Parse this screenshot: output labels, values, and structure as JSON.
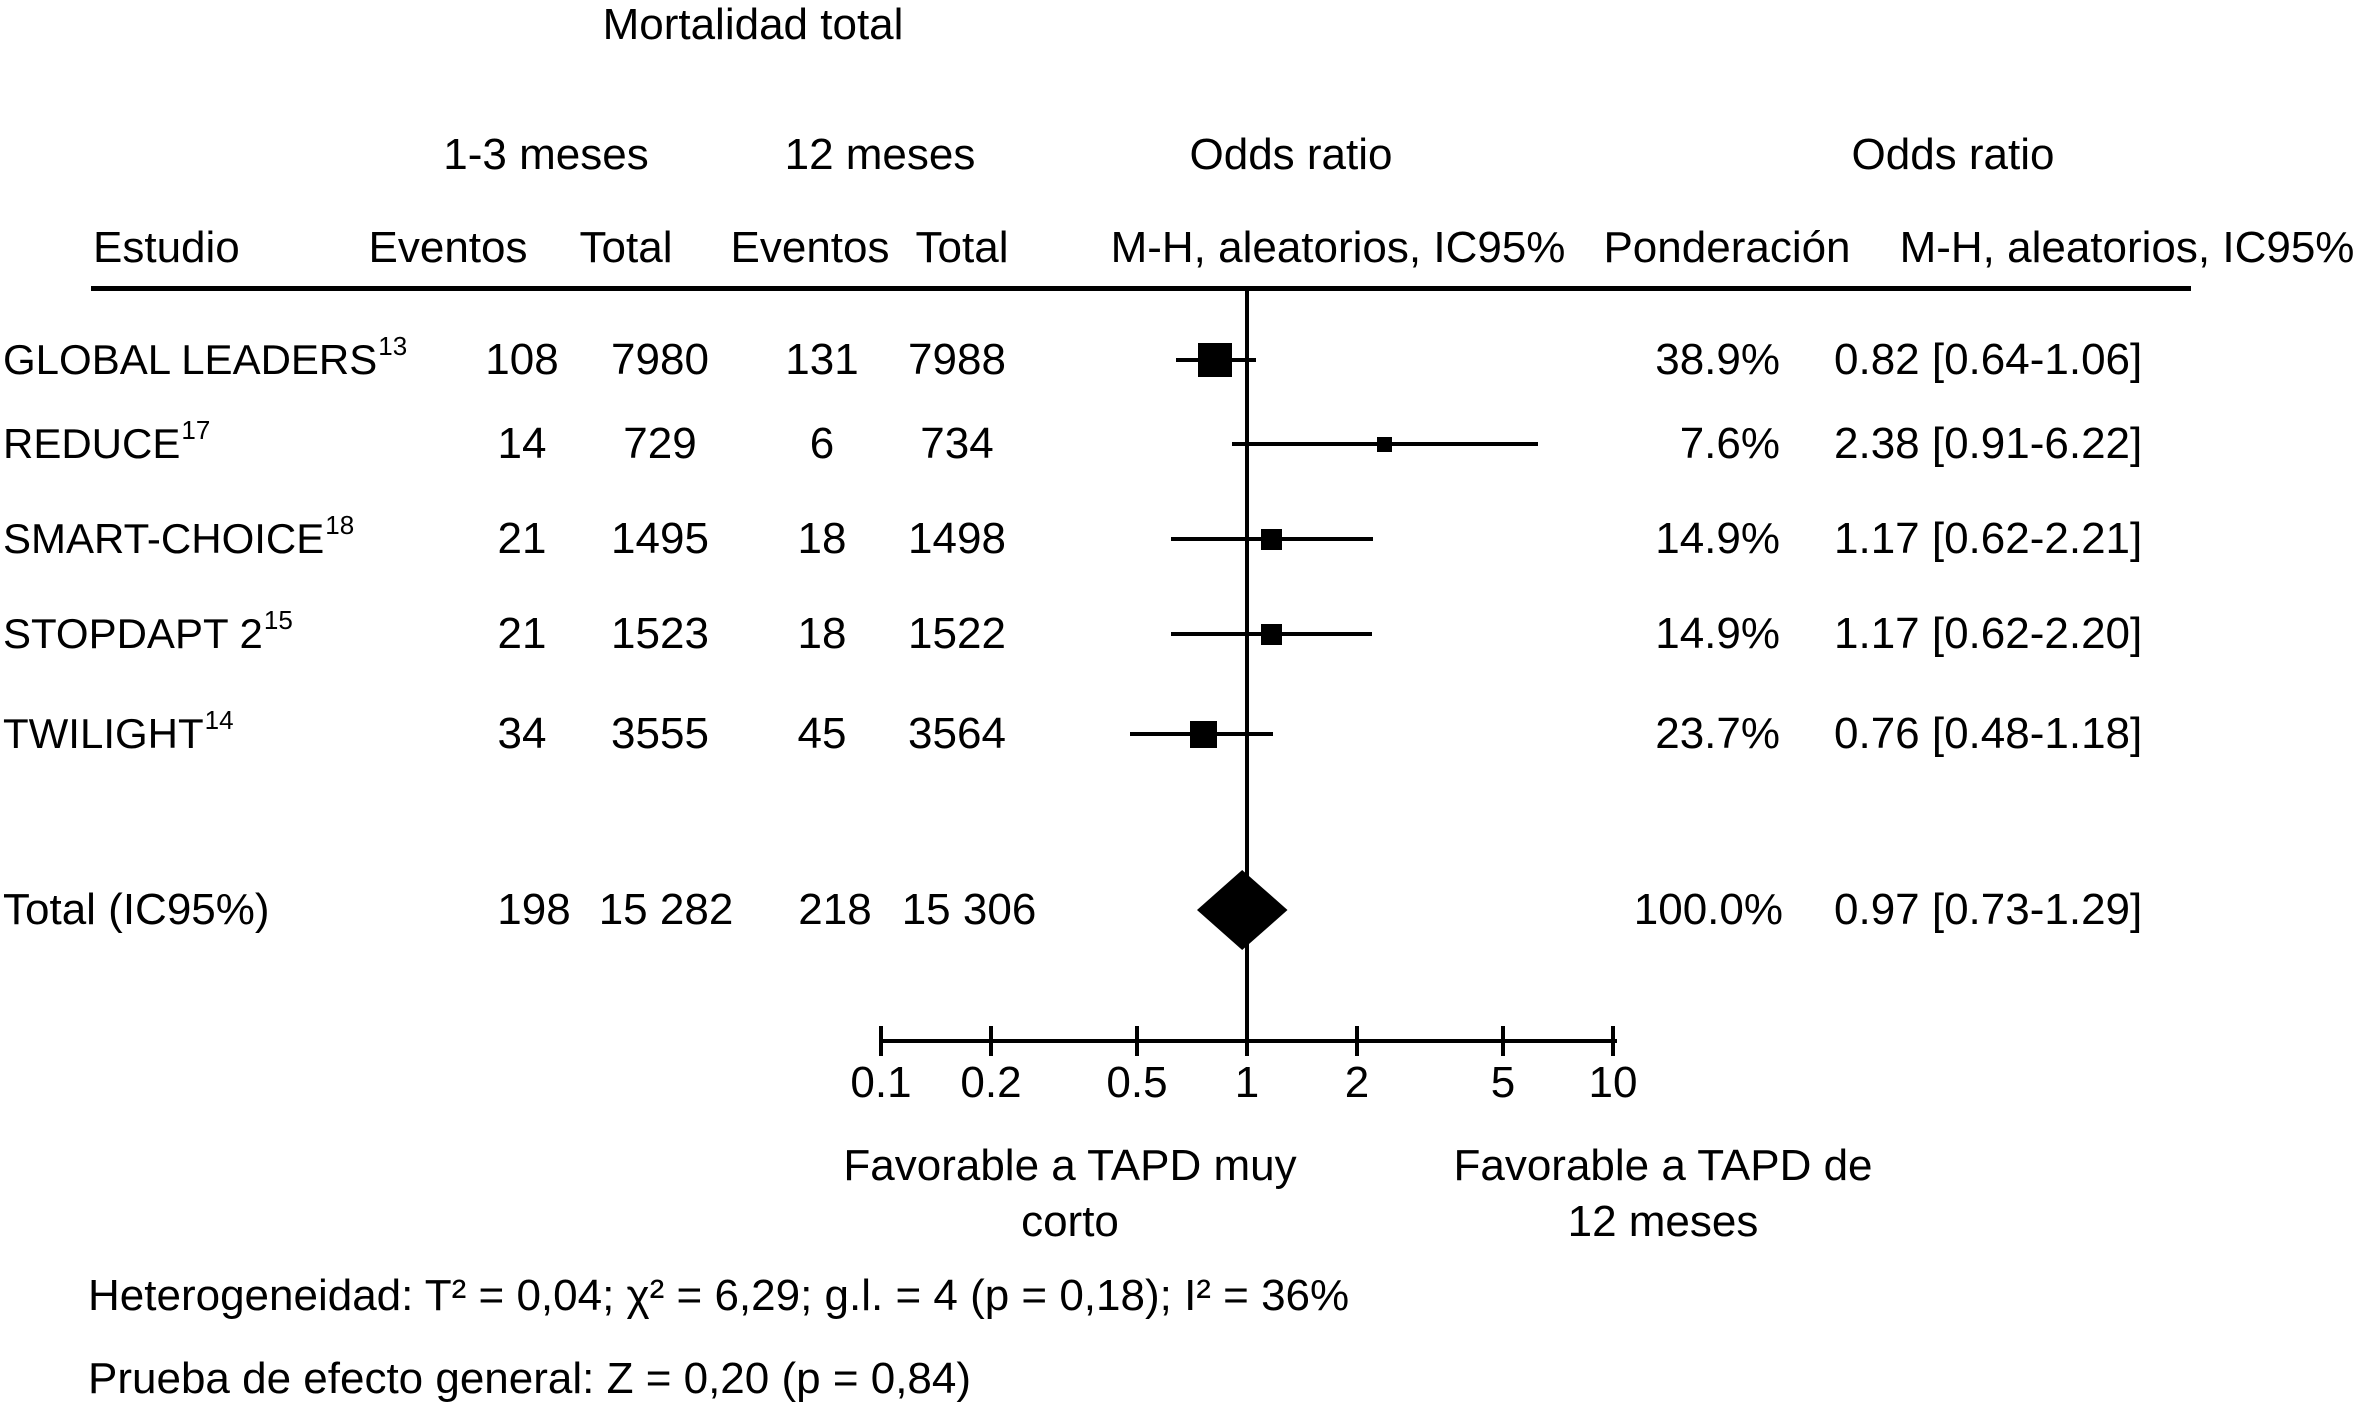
{
  "title": "Mortalidad total",
  "header": {
    "group_short": "1-3 meses",
    "group_long": "12 meses",
    "odds_ratio_left": "Odds ratio",
    "odds_ratio_right": "Odds ratio",
    "study": "Estudio",
    "events_short": "Eventos",
    "total_short": "Total",
    "events_long": "Eventos",
    "total_long": "Total",
    "mh_left": "M-H, aleatorios, IC95%",
    "weight": "Ponderación",
    "mh_right": "M-H, aleatorios, IC95%"
  },
  "chart_data": {
    "type": "forest",
    "x_scale": "log10",
    "axis": {
      "ticks": [
        0.1,
        0.2,
        0.5,
        1,
        2,
        5,
        10
      ],
      "tick_labels": [
        "0.1",
        "0.2",
        "0.5",
        "1",
        "2",
        "5",
        "10"
      ],
      "range": [
        0.1,
        10
      ],
      "no_effect_value": 1
    },
    "studies": [
      {
        "name": "GLOBAL LEADERS",
        "ref": "13",
        "events_short": "108",
        "total_short": "7980",
        "events_long": "131",
        "total_long": "7988",
        "weight_label": "38.9%",
        "weight_pct": 38.9,
        "or": 0.82,
        "ci_low": 0.64,
        "ci_high": 1.06,
        "or_label": "0.82 [0.64-1.06]"
      },
      {
        "name": "REDUCE",
        "ref": "17",
        "events_short": "14",
        "total_short": "729",
        "events_long": "6",
        "total_long": "734",
        "weight_label": "7.6%",
        "weight_pct": 7.6,
        "or": 2.38,
        "ci_low": 0.91,
        "ci_high": 6.22,
        "or_label": "2.38 [0.91-6.22]"
      },
      {
        "name": "SMART-CHOICE",
        "ref": "18",
        "events_short": "21",
        "total_short": "1495",
        "events_long": "18",
        "total_long": "1498",
        "weight_label": "14.9%",
        "weight_pct": 14.9,
        "or": 1.17,
        "ci_low": 0.62,
        "ci_high": 2.21,
        "or_label": "1.17 [0.62-2.21]"
      },
      {
        "name": "STOPDAPT 2",
        "ref": "15",
        "events_short": "21",
        "total_short": "1523",
        "events_long": "18",
        "total_long": "1522",
        "weight_label": "14.9%",
        "weight_pct": 14.9,
        "or": 1.17,
        "ci_low": 0.62,
        "ci_high": 2.2,
        "or_label": "1.17 [0.62-2.20]"
      },
      {
        "name": "TWILIGHT",
        "ref": "14",
        "events_short": "34",
        "total_short": "3555",
        "events_long": "45",
        "total_long": "3564",
        "weight_label": "23.7%",
        "weight_pct": 23.7,
        "or": 0.76,
        "ci_low": 0.48,
        "ci_high": 1.18,
        "or_label": "0.76 [0.48-1.18]"
      }
    ],
    "total": {
      "label": "Total (IC95%)",
      "events_short": "198",
      "total_short": "15 282",
      "events_long": "218",
      "total_long": "15 306",
      "weight_label": "100.0%",
      "or": 0.97,
      "ci_low": 0.73,
      "ci_high": 1.29,
      "or_label": "0.97 [0.73-1.29]"
    },
    "xlabel_left_line1": "Favorable a TAPD muy",
    "xlabel_left_line2": "corto",
    "xlabel_right_line1": "Favorable a TAPD de",
    "xlabel_right_line2": "12 meses"
  },
  "footer": {
    "heterogeneity": "Heterogeneidad: T² = 0,04; χ² = 6,29; g.l. = 4 (p = 0,18); I² = 36%",
    "overall_effect": "Prueba de efecto general: Z = 0,20 (p = 0,84)"
  }
}
